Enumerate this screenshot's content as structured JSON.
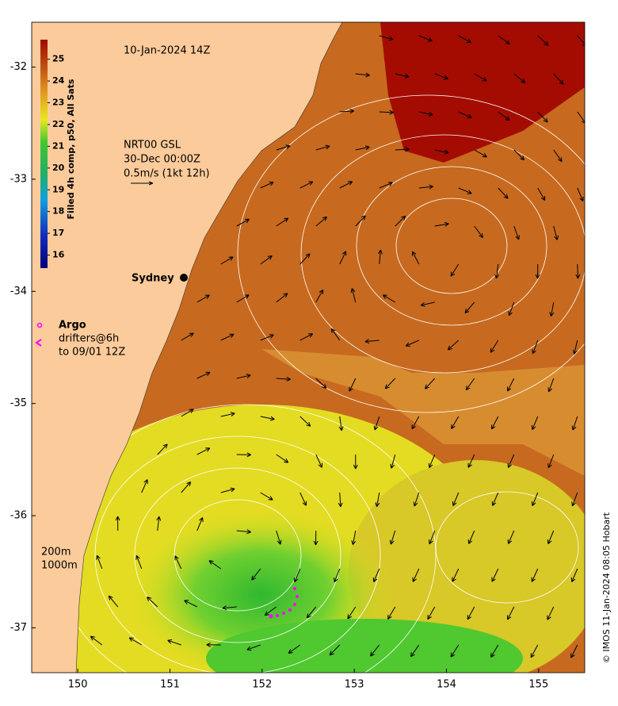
{
  "map": {
    "timestamp": "10-Jan-2024 14Z",
    "xlim": [
      149.5,
      155.5
    ],
    "ylim": [
      -37.4,
      -31.6
    ],
    "xticks": [
      150,
      151,
      152,
      153,
      154,
      155
    ],
    "yticks": [
      -32,
      -33,
      -34,
      -35,
      -36,
      -37
    ],
    "colorbar": {
      "label": "Filled 4h comp, p50, All Sats",
      "lim": [
        15.4,
        25.9
      ],
      "ticks": [
        16,
        17,
        18,
        19,
        20,
        21,
        22,
        23,
        24,
        25
      ]
    },
    "current_legend": [
      "NRT00 GSL",
      "30-Dec 00:00Z",
      "0.5m/s (1kt 12h)"
    ],
    "place": "Sydney",
    "drifter_legend": {
      "title": "Argo",
      "lines": [
        "drifters@6h",
        "to 09/01 12Z"
      ]
    },
    "isobaths": [
      "200m",
      "1000m"
    ],
    "credit": "© IMOS 11-Jan-2024 08:05 Hobart"
  }
}
